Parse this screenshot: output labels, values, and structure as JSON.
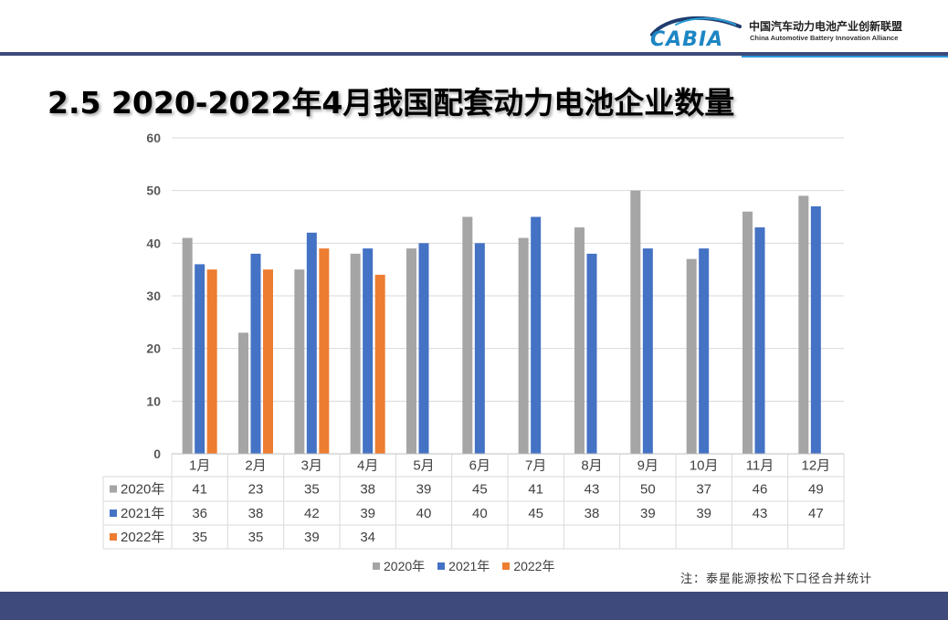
{
  "header": {
    "logo_mark": "CABIA",
    "org_name_cn": "中国汽车动力电池产业创新联盟",
    "org_name_en": "China Automotive Battery Innovation Alliance"
  },
  "slide": {
    "title": "2.5 2020-2022年4月我国配套动力电池企业数量",
    "note": "注：泰星能源按松下口径合并统计"
  },
  "colors": {
    "header_rule": "#3d4a7b",
    "header_accent": "#2d9bd8",
    "footer_band": "#3e4a7b",
    "logo_blue": "#1d86c4",
    "logo_navy": "#1f3c6e"
  },
  "chart_data": {
    "type": "bar",
    "categories": [
      "1月",
      "2月",
      "3月",
      "4月",
      "5月",
      "6月",
      "7月",
      "8月",
      "9月",
      "10月",
      "11月",
      "12月"
    ],
    "series": [
      {
        "name": "2020年",
        "color": "#a5a5a5",
        "values": [
          41,
          23,
          35,
          38,
          39,
          45,
          41,
          43,
          50,
          37,
          46,
          49
        ]
      },
      {
        "name": "2021年",
        "color": "#4472c4",
        "values": [
          36,
          38,
          42,
          39,
          40,
          40,
          45,
          38,
          39,
          39,
          43,
          47
        ]
      },
      {
        "name": "2022年",
        "color": "#ed7d31",
        "values": [
          35,
          35,
          39,
          34,
          null,
          null,
          null,
          null,
          null,
          null,
          null,
          null
        ]
      }
    ],
    "ylim": [
      0,
      60
    ],
    "yticks": [
      0,
      10,
      20,
      30,
      40,
      50,
      60
    ],
    "grid": true,
    "legend_position": "bottom",
    "data_table": true
  }
}
